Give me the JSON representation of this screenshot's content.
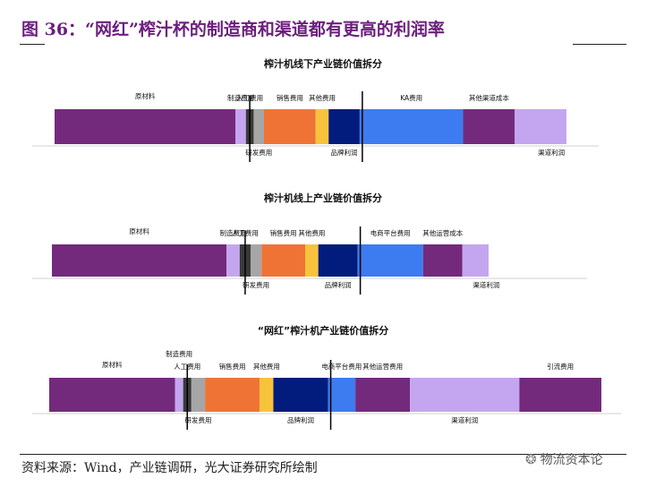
{
  "figure": {
    "title": "图 36：“网红”榨汁杯的制造商和渠道都有更高的利润率",
    "source": "资料来源：Wind，产业链调研，光大证券研究所绘制",
    "watermark": "物流资本论"
  },
  "chart_data": [
    {
      "type": "bar",
      "title": "榨汁机线下产业链价值拆分",
      "categories": [
        "原材料",
        "制造费用",
        "人工费用",
        "研发费用",
        "销售费用",
        "其他费用",
        "品牌利润",
        "KA费用",
        "其他渠道成本",
        "渠道利润"
      ],
      "values": [
        35,
        2,
        1.5,
        2,
        10,
        2.5,
        6,
        20,
        10,
        10
      ],
      "colors": [
        "#742a7c",
        "#c4a6f0",
        "#3a3a3a",
        "#a6a6a6",
        "#f07336",
        "#f8c33c",
        "#021c7d",
        "#3c7cf0",
        "#742a7c",
        "#c4a6f0"
      ],
      "label_pos": [
        "above",
        "above",
        "above",
        "below",
        "above",
        "above",
        "below",
        "above",
        "above",
        "below"
      ],
      "divider_after": 6
    },
    {
      "type": "bar",
      "title": "榨汁机线上产业链价值拆分",
      "categories": [
        "原材料",
        "制造费用",
        "人工费用",
        "研发费用",
        "销售费用",
        "其他费用",
        "品牌利润",
        "电商平台费用",
        "其他运营成本",
        "渠道利润"
      ],
      "values": [
        40,
        3,
        2.5,
        2.5,
        10,
        3,
        9,
        15,
        9,
        6
      ],
      "colors": [
        "#742a7c",
        "#c4a6f0",
        "#3a3a3a",
        "#a6a6a6",
        "#f07336",
        "#f8c33c",
        "#021c7d",
        "#3c7cf0",
        "#742a7c",
        "#c4a6f0"
      ],
      "label_pos": [
        "above",
        "above",
        "above",
        "below",
        "above",
        "above",
        "below",
        "above",
        "above",
        "below"
      ],
      "divider_after": 6
    },
    {
      "type": "bar",
      "title": "“网红”榨汁机产业链价值拆分",
      "categories": [
        "原材料",
        "制造费用",
        "人工费用",
        "研发费用",
        "销售费用",
        "其他费用",
        "品牌利润",
        "电商平台费用",
        "其他运营费用",
        "渠道利润",
        "引流费用"
      ],
      "values": [
        23,
        1.5,
        1.5,
        2.5,
        10,
        2.5,
        10,
        5,
        10,
        20,
        15
      ],
      "colors": [
        "#742a7c",
        "#c4a6f0",
        "#3a3a3a",
        "#a6a6a6",
        "#f07336",
        "#f8c33c",
        "#021c7d",
        "#3c7cf0",
        "#742a7c",
        "#c4a6f0",
        "#742a7c"
      ],
      "label_pos": [
        "above-low",
        "above-high",
        "above",
        "below",
        "above",
        "above",
        "below",
        "above",
        "above",
        "below",
        "above"
      ],
      "divider_after": 6
    }
  ]
}
